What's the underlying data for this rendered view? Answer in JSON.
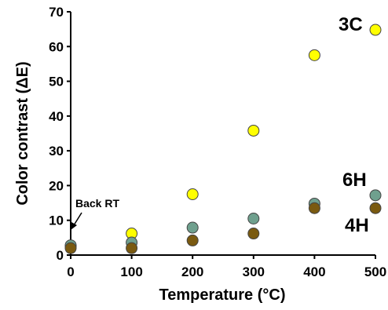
{
  "chart_data": {
    "type": "scatter",
    "xlabel": "Temperature (°C)",
    "ylabel": "Color contrast (ΔE)",
    "xlim": [
      0,
      500
    ],
    "ylim": [
      0,
      70
    ],
    "x_ticks": [
      "0",
      "100",
      "200",
      "300",
      "400",
      "500"
    ],
    "y_ticks": [
      "0",
      "10",
      "20",
      "30",
      "40",
      "50",
      "60",
      "70"
    ],
    "grid": false,
    "series": [
      {
        "name": "3C",
        "color": "#ffff00",
        "x": [
          0,
          100,
          200,
          300,
          400,
          500
        ],
        "y": [
          2.5,
          6.2,
          17.5,
          35.8,
          57.5,
          64.8
        ]
      },
      {
        "name": "6H",
        "color": "#6fa08e",
        "x": [
          0,
          100,
          200,
          300,
          400,
          500
        ],
        "y": [
          2.8,
          3.6,
          7.9,
          10.5,
          14.8,
          17.2
        ]
      },
      {
        "name": "4H",
        "color": "#7a5a10",
        "x": [
          0,
          100,
          200,
          300,
          400,
          500
        ],
        "y": [
          2.0,
          2.0,
          4.2,
          6.2,
          13.5,
          13.5
        ]
      }
    ],
    "annotation": {
      "text": "Back RT",
      "x": 0,
      "y": 2.5
    }
  }
}
